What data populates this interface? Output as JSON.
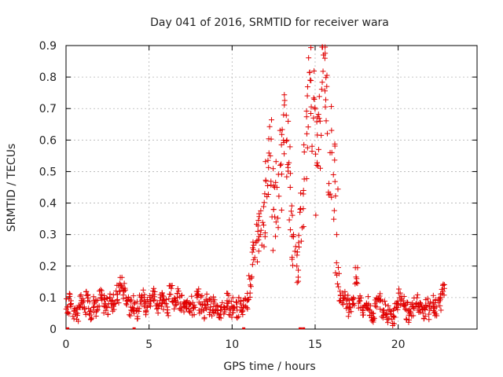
{
  "chart_data": {
    "type": "scatter",
    "title": "Day 041 of 2016, SRMTID for receiver wara",
    "xlabel": "GPS time / hours",
    "ylabel": "SRMTID / TECUs",
    "xlim": [
      0,
      24.75
    ],
    "ylim": [
      0,
      0.9
    ],
    "xticks": [
      0,
      5,
      10,
      15,
      20
    ],
    "xtick_labels": [
      "0",
      "5",
      "10",
      "15",
      "20"
    ],
    "yticks": [
      0,
      0.1,
      0.2,
      0.3,
      0.4,
      0.5,
      0.6,
      0.7,
      0.8,
      0.9
    ],
    "ytick_labels": [
      "0",
      "0.1",
      "0.2",
      "0.3",
      "0.4",
      "0.5",
      "0.6",
      "0.7",
      "0.8",
      "0.9"
    ],
    "grid": true,
    "marker": "plus",
    "color": "#e00000",
    "series": [
      {
        "name": "SRMTID",
        "x": [
          0.1,
          0.3,
          0.5,
          0.7,
          0.9,
          1.1,
          1.3,
          1.5,
          1.7,
          1.9,
          2.1,
          2.3,
          2.5,
          2.7,
          2.9,
          3.1,
          3.3,
          3.5,
          3.7,
          3.9,
          4.1,
          4.3,
          4.5,
          4.7,
          4.9,
          5.1,
          5.3,
          5.5,
          5.7,
          5.9,
          6.1,
          6.3,
          6.5,
          6.7,
          6.9,
          7.1,
          7.3,
          7.5,
          7.7,
          7.9,
          8.1,
          8.3,
          8.5,
          8.7,
          8.9,
          9.1,
          9.3,
          9.5,
          9.7,
          9.9,
          10.1,
          10.3,
          10.5,
          10.7,
          10.9,
          11.1,
          11.3,
          11.5,
          11.7,
          11.9,
          12.1,
          12.3,
          12.5,
          12.7,
          12.9,
          13.1,
          13.3,
          13.5,
          13.7,
          13.9,
          14.1,
          14.3,
          14.5,
          14.7,
          14.9,
          15.1,
          15.3,
          15.5,
          15.7,
          15.9,
          16.1,
          16.3,
          16.5,
          16.7,
          16.9,
          17.1,
          17.3,
          17.5,
          17.7,
          17.9,
          18.1,
          18.3,
          18.5,
          18.7,
          18.9,
          19.1,
          19.3,
          19.5,
          19.7,
          19.9,
          20.1,
          20.3,
          20.5,
          20.7,
          20.9,
          21.1,
          21.3,
          21.5,
          21.7,
          21.9,
          22.1,
          22.3,
          22.5,
          22.7
        ],
        "y": [
          0.07,
          0.09,
          0.06,
          0.05,
          0.08,
          0.07,
          0.09,
          0.06,
          0.08,
          0.07,
          0.1,
          0.08,
          0.07,
          0.09,
          0.08,
          0.11,
          0.14,
          0.12,
          0.09,
          0.07,
          0.08,
          0.06,
          0.08,
          0.1,
          0.07,
          0.09,
          0.11,
          0.08,
          0.1,
          0.09,
          0.07,
          0.11,
          0.09,
          0.1,
          0.08,
          0.07,
          0.09,
          0.08,
          0.07,
          0.1,
          0.08,
          0.06,
          0.09,
          0.07,
          0.08,
          0.05,
          0.06,
          0.07,
          0.09,
          0.06,
          0.07,
          0.06,
          0.08,
          0.07,
          0.09,
          0.14,
          0.22,
          0.28,
          0.3,
          0.33,
          0.42,
          0.55,
          0.38,
          0.45,
          0.52,
          0.68,
          0.6,
          0.45,
          0.3,
          0.2,
          0.38,
          0.44,
          0.62,
          0.79,
          0.67,
          0.52,
          0.66,
          0.87,
          0.77,
          0.56,
          0.49,
          0.3,
          0.12,
          0.09,
          0.08,
          0.07,
          0.1,
          0.16,
          0.09,
          0.07,
          0.08,
          0.06,
          0.05,
          0.07,
          0.09,
          0.06,
          0.05,
          0.06,
          0.04,
          0.07,
          0.1,
          0.09,
          0.06,
          0.05,
          0.07,
          0.08,
          0.06,
          0.05,
          0.07,
          0.06,
          0.08,
          0.07,
          0.09,
          0.12
        ],
        "spread": [
          0.03,
          0.03,
          0.03,
          0.03,
          0.03,
          0.03,
          0.03,
          0.03,
          0.03,
          0.03,
          0.03,
          0.03,
          0.03,
          0.03,
          0.03,
          0.03,
          0.03,
          0.03,
          0.03,
          0.03,
          0.03,
          0.03,
          0.03,
          0.03,
          0.03,
          0.03,
          0.03,
          0.03,
          0.03,
          0.03,
          0.03,
          0.03,
          0.03,
          0.03,
          0.03,
          0.03,
          0.03,
          0.03,
          0.03,
          0.03,
          0.03,
          0.03,
          0.03,
          0.03,
          0.03,
          0.03,
          0.03,
          0.03,
          0.03,
          0.03,
          0.03,
          0.03,
          0.03,
          0.03,
          0.03,
          0.04,
          0.06,
          0.07,
          0.08,
          0.1,
          0.12,
          0.14,
          0.14,
          0.16,
          0.16,
          0.14,
          0.14,
          0.14,
          0.1,
          0.08,
          0.12,
          0.16,
          0.16,
          0.14,
          0.16,
          0.18,
          0.18,
          0.16,
          0.16,
          0.18,
          0.16,
          0.16,
          0.06,
          0.03,
          0.03,
          0.03,
          0.03,
          0.04,
          0.03,
          0.03,
          0.03,
          0.03,
          0.03,
          0.03,
          0.03,
          0.03,
          0.03,
          0.03,
          0.03,
          0.03,
          0.03,
          0.03,
          0.03,
          0.03,
          0.03,
          0.03,
          0.03,
          0.03,
          0.03,
          0.03,
          0.03,
          0.03,
          0.03,
          0.03
        ]
      }
    ],
    "outliers": {
      "x": [
        0.1,
        4.1,
        10.7,
        14.1,
        14.3
      ],
      "y": [
        0,
        0,
        0,
        0,
        0
      ]
    }
  }
}
